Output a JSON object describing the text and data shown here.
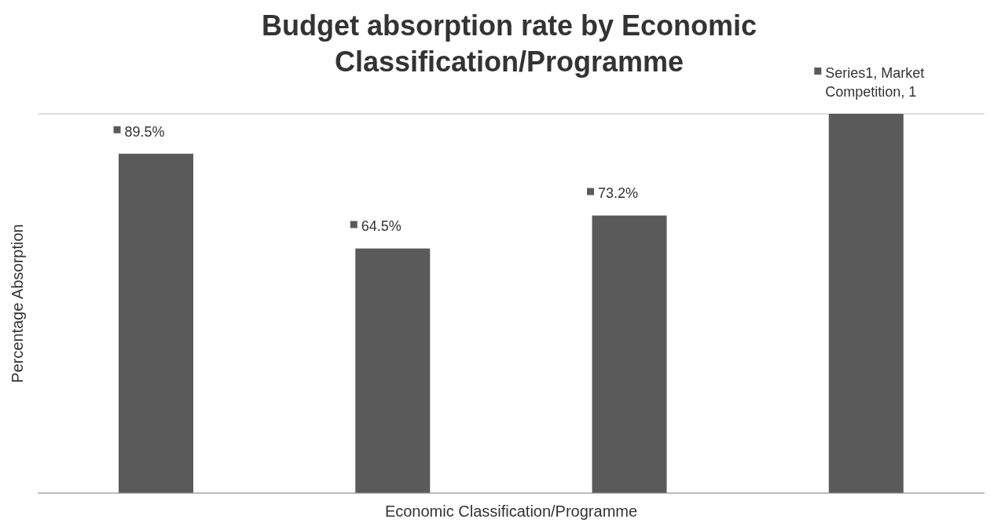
{
  "chart_data": {
    "type": "bar",
    "title": "Budget absorption rate by Economic Classification/Programme",
    "xlabel": "Economic Classification/Programme",
    "ylabel": "Percentage Absorption",
    "categories": [
      null,
      null,
      null,
      null
    ],
    "values": [
      0.895,
      0.645,
      0.732,
      1
    ],
    "value_labels": [
      "89.5%",
      "64.5%",
      "73.2%",
      "Series1, Market Competition, 1"
    ],
    "color": "#5a5a5a",
    "ylim": [
      0,
      1
    ],
    "grid": "y",
    "tick_labels": false
  }
}
